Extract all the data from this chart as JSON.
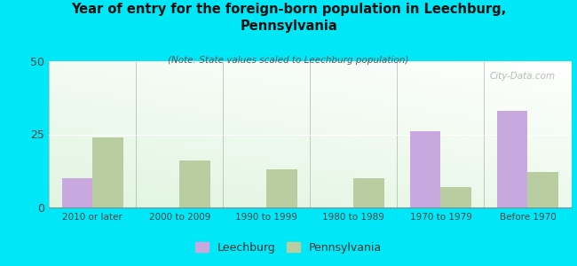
{
  "title": "Year of entry for the foreign-born population in Leechburg,\nPennsylvania",
  "subtitle": "(Note: State values scaled to Leechburg population)",
  "categories": [
    "2010 or later",
    "2000 to 2009",
    "1990 to 1999",
    "1980 to 1989",
    "1970 to 1979",
    "Before 1970"
  ],
  "leechburg_values": [
    10,
    0,
    0,
    0,
    26,
    33
  ],
  "pennsylvania_values": [
    24,
    16,
    13,
    10,
    7,
    12
  ],
  "leechburg_color": "#c9a8e0",
  "pennsylvania_color": "#b8ceA0",
  "background_color": "#00e8f8",
  "ylim": [
    0,
    50
  ],
  "yticks": [
    0,
    25,
    50
  ],
  "bar_width": 0.35,
  "watermark": "City-Data.com",
  "legend_labels": [
    "Leechburg",
    "Pennsylvania"
  ]
}
